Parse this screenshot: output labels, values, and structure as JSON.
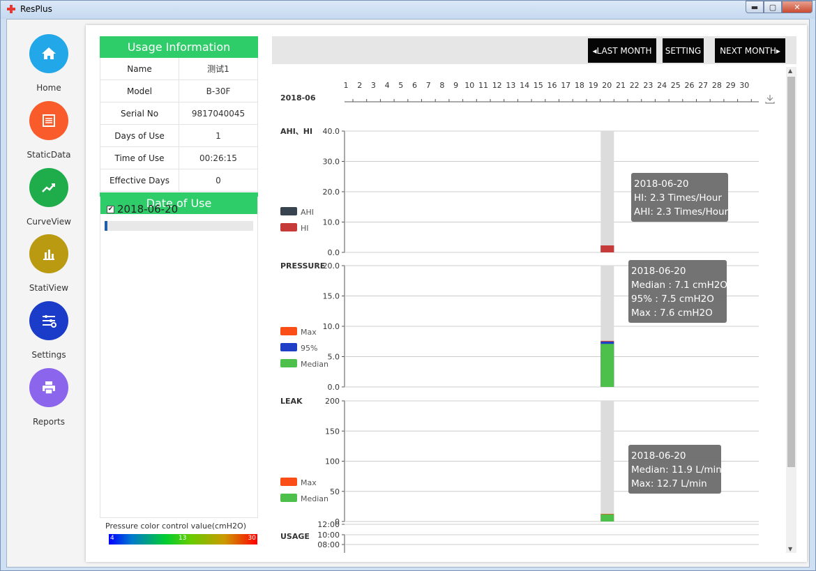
{
  "window": {
    "title": "ResPlus",
    "min_label": "▬",
    "max_label": "▢",
    "close_label": "✕"
  },
  "nav": [
    {
      "label": "Home",
      "icon": "home-icon",
      "color": "#22a7e8"
    },
    {
      "label": "StaticData",
      "icon": "calendar-list-icon",
      "color": "#f95c2a"
    },
    {
      "label": "CurveView",
      "icon": "line-chart-icon",
      "color": "#1fad4c"
    },
    {
      "label": "StatiView",
      "icon": "bar-chart-icon",
      "color": "#b99a10"
    },
    {
      "label": "Settings",
      "icon": "sliders-gear-icon",
      "color": "#1b3bc9"
    },
    {
      "label": "Reports",
      "icon": "printer-icon",
      "color": "#8b66ec"
    }
  ],
  "usage_info": {
    "header": "Usage Information",
    "rows": [
      {
        "key": "Name",
        "value": "测试1"
      },
      {
        "key": "Model",
        "value": "B-30F"
      },
      {
        "key": "Serial No",
        "value": "9817040045"
      },
      {
        "key": "Days of Use",
        "value": "1"
      },
      {
        "key": "Time of Use",
        "value": "00:26:15"
      },
      {
        "key": "Effective Days",
        "value": "0"
      }
    ]
  },
  "date_of_use": {
    "header": "Date of Use",
    "items": [
      {
        "date": "2018-06-20",
        "checked": true,
        "progress": 0.02
      }
    ]
  },
  "pressure_color": {
    "title": "Pressure color control value(cmH2O)",
    "min": "4",
    "mid": "13",
    "max": "30"
  },
  "toolbar": {
    "last_month": "◂LAST MONTH",
    "setting": "SETTING",
    "next_month": "NEXT MONTH▸"
  },
  "month_label": "2018-06",
  "download_icon": "download-icon",
  "chart_data": [
    {
      "type": "bar",
      "title": "AHI、HI",
      "x": [
        20
      ],
      "ylim": [
        0,
        40
      ],
      "yticks": [
        "0.0",
        "10.0",
        "20.0",
        "30.0",
        "40.0"
      ],
      "series": [
        {
          "name": "AHI",
          "color": "#37434f",
          "values": [
            2.3
          ]
        },
        {
          "name": "HI",
          "color": "#c73a3a",
          "values": [
            2.3
          ]
        }
      ],
      "tooltip": [
        "2018-06-20",
        "HI: 2.3 Times/Hour",
        "AHI: 2.3 Times/Hour"
      ]
    },
    {
      "type": "bar",
      "title": "PRESSURE",
      "x": [
        20
      ],
      "ylim": [
        0,
        20
      ],
      "yticks": [
        "0.0",
        "5.0",
        "10.0",
        "15.0",
        "20.0"
      ],
      "series": [
        {
          "name": "Max",
          "color": "#fb4d16",
          "values": [
            7.6
          ]
        },
        {
          "name": "95%",
          "color": "#1f3fc6",
          "values": [
            7.5
          ]
        },
        {
          "name": "Median",
          "color": "#4cc04a",
          "values": [
            7.1
          ]
        }
      ],
      "tooltip": [
        "2018-06-20",
        "Median : 7.1 cmH2O",
        "95% : 7.5 cmH2O",
        "Max : 7.6 cmH2O"
      ]
    },
    {
      "type": "bar",
      "title": "LEAK",
      "x": [
        20
      ],
      "ylim": [
        0,
        200
      ],
      "yticks": [
        "0",
        "50",
        "100",
        "150",
        "200"
      ],
      "series": [
        {
          "name": "Max",
          "color": "#fb4d16",
          "values": [
            12.7
          ]
        },
        {
          "name": "Median",
          "color": "#4cc04a",
          "values": [
            11.9
          ]
        }
      ],
      "tooltip": [
        "2018-06-20",
        "Median: 11.9 L/min",
        "Max: 12.7 L/min"
      ]
    },
    {
      "type": "bar",
      "title": "USAGE",
      "yticks": [
        "08:00",
        "10:00",
        "12:00"
      ]
    }
  ],
  "days": [
    "1",
    "2",
    "3",
    "4",
    "5",
    "6",
    "7",
    "8",
    "9",
    "10",
    "11",
    "12",
    "13",
    "14",
    "15",
    "16",
    "17",
    "18",
    "19",
    "20",
    "21",
    "22",
    "23",
    "24",
    "25",
    "26",
    "27",
    "28",
    "29",
    "30"
  ]
}
